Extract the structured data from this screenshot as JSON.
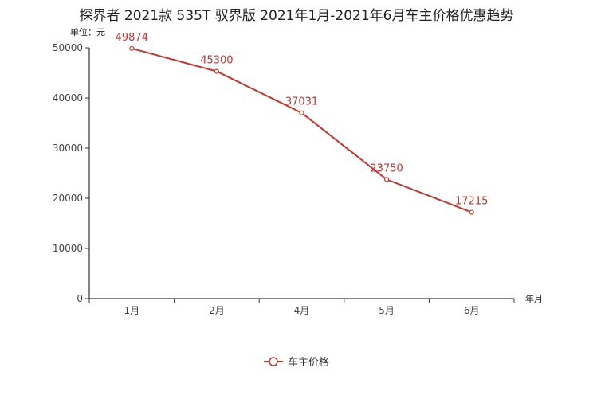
{
  "chart_data": {
    "type": "line",
    "title": "探界者 2021款 535T 驭界版 2021年1月-2021年6月车主价格优惠趋势",
    "ylabel": "单位：元",
    "xlabel": "年月",
    "categories": [
      "1月",
      "2月",
      "4月",
      "5月",
      "6月"
    ],
    "ylim": [
      0,
      50000
    ],
    "yticks": [
      0,
      10000,
      20000,
      30000,
      40000,
      50000
    ],
    "series": [
      {
        "name": "车主价格",
        "values": [
          49874,
          45300,
          37031,
          23750,
          17215
        ],
        "color": "#c23531"
      }
    ],
    "legend_position": "bottom-center"
  }
}
